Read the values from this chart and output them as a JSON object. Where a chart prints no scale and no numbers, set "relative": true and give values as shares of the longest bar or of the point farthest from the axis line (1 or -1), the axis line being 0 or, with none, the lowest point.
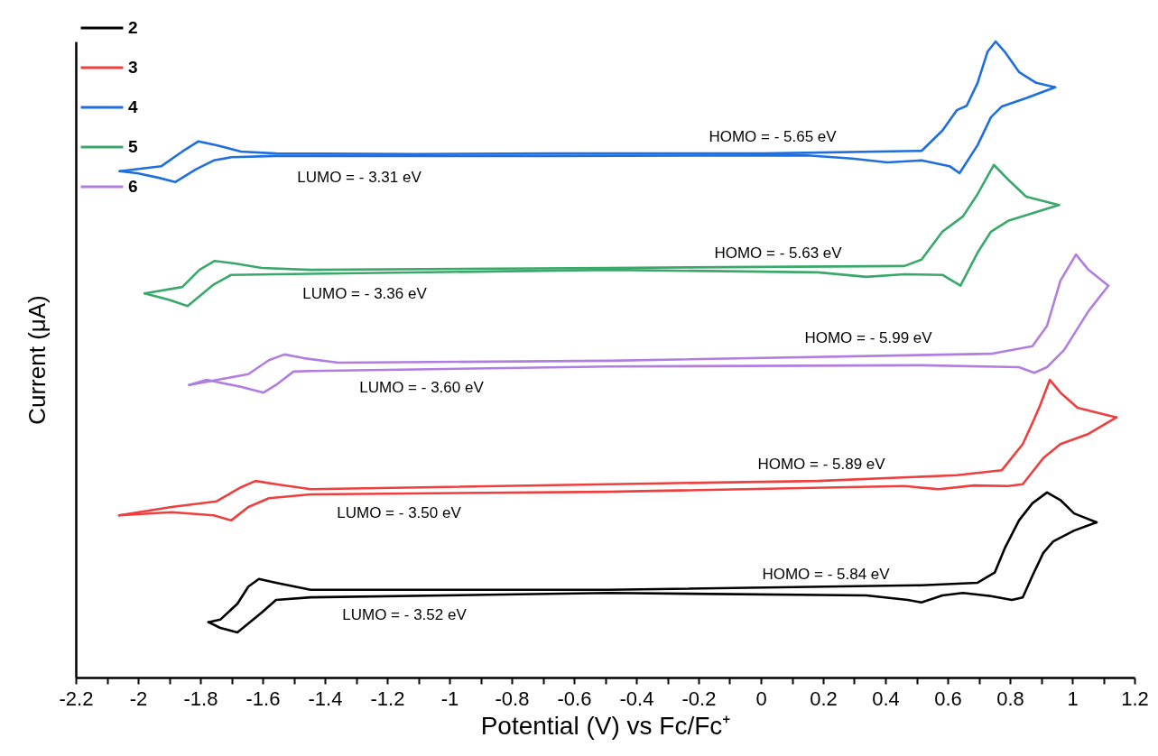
{
  "chart_data": {
    "type": "line",
    "relative": true,
    "xlabel": "Potential (V) vs Fc/Fc⁺",
    "ylabel": "Current (μA)",
    "legend": "top left",
    "grid": false,
    "xlim": [
      -2.2,
      1.2
    ],
    "xticks": [
      -2.2,
      {
        "value": -2.1,
        "label": null
      },
      -2,
      {
        "value": -1.9,
        "label": null
      },
      -1.8,
      {
        "value": -1.7,
        "label": null
      },
      -1.6,
      {
        "value": -1.5,
        "label": null
      },
      -1.4,
      {
        "value": -1.3,
        "label": null
      },
      -1.2,
      {
        "value": -1.1,
        "label": null
      },
      -1,
      {
        "value": -0.9,
        "label": null
      },
      -0.8,
      {
        "value": -0.7,
        "label": null
      },
      -0.6,
      {
        "value": -0.5,
        "label": null
      },
      -0.4,
      {
        "value": -0.3,
        "label": null
      },
      -0.2,
      {
        "value": -0.1,
        "label": null
      },
      0,
      {
        "value": 0.1,
        "label": null
      },
      0.2,
      {
        "value": 0.3,
        "label": null
      },
      0.4,
      {
        "value": 0.5,
        "label": null
      },
      0.6,
      {
        "value": 0.7,
        "label": null
      },
      0.8,
      {
        "value": 0.9,
        "label": null
      },
      1,
      {
        "value": 1.1,
        "label": null
      },
      1.2
    ],
    "series": [
      {
        "name": "2",
        "color": "#000000",
        "x": [
          -1.774,
          -1.736,
          -1.681,
          -1.646,
          -1.612,
          -1.557,
          -1.446,
          -0.487,
          0.516,
          0.696,
          0.751,
          0.783,
          0.829,
          0.872,
          0.919,
          0.962,
          1.006,
          1.078
        ],
        "values": [
          0.087,
          0.091,
          0.116,
          0.143,
          0.155,
          0.149,
          0.138,
          0.138,
          0.145,
          0.149,
          0.165,
          0.203,
          0.247,
          0.274,
          0.291,
          0.279,
          0.258,
          0.244
        ]
      },
      {
        "name": "3",
        "color": "#ee3e3e",
        "x": [
          -2.061,
          -1.893,
          -1.748,
          -1.67,
          -1.623,
          -1.557,
          -1.446,
          -0.487,
          0.183,
          0.629,
          0.774,
          0.841,
          0.872,
          0.896,
          0.928,
          0.962,
          1.017,
          1.142
        ],
        "values": [
          0.255,
          0.268,
          0.277,
          0.299,
          0.309,
          0.304,
          0.296,
          0.304,
          0.309,
          0.318,
          0.326,
          0.367,
          0.4,
          0.427,
          0.468,
          0.448,
          0.424,
          0.409
        ]
      },
      {
        "name": "4",
        "color": "#1f6ede",
        "x": [
          -2.059,
          -1.925,
          -1.858,
          -1.806,
          -1.748,
          -1.67,
          -1.557,
          -1.11,
          -0.655,
          0.006,
          0.516,
          0.583,
          0.629,
          0.661,
          0.696,
          0.728,
          0.754,
          0.783,
          0.829,
          0.884,
          0.945
        ],
        "values": [
          0.796,
          0.804,
          0.827,
          0.843,
          0.837,
          0.827,
          0.824,
          0.823,
          0.824,
          0.824,
          0.828,
          0.86,
          0.892,
          0.899,
          0.935,
          0.984,
          1,
          0.984,
          0.952,
          0.935,
          0.928
        ]
      },
      {
        "name": "5",
        "color": "#3aa86a",
        "x": [
          -1.979,
          -1.858,
          -1.803,
          -1.754,
          -1.69,
          -1.603,
          -1.446,
          -0.487,
          0.461,
          0.516,
          0.583,
          0.649,
          0.696,
          0.748,
          0.794,
          0.852,
          0.957
        ],
        "values": [
          0.604,
          0.614,
          0.641,
          0.655,
          0.651,
          0.644,
          0.641,
          0.644,
          0.647,
          0.657,
          0.701,
          0.725,
          0.76,
          0.806,
          0.783,
          0.756,
          0.743
        ]
      },
      {
        "name": "6",
        "color": "#b07ee0",
        "x": [
          -1.836,
          -1.646,
          -1.58,
          -1.53,
          -1.467,
          -1.357,
          -0.487,
          0.739,
          0.872,
          0.919,
          0.962,
          1.012,
          1.052,
          1.116
        ],
        "values": [
          0.46,
          0.477,
          0.499,
          0.508,
          0.502,
          0.495,
          0.498,
          0.509,
          0.521,
          0.553,
          0.624,
          0.665,
          0.641,
          0.616
        ]
      },
      {
        "color": "#000000",
        "x": [
          -1.774,
          -1.736,
          -1.681,
          -1.603,
          -1.557,
          -1.446,
          -0.487,
          0.339,
          0.472,
          0.516,
          0.583,
          0.649,
          0.739,
          0.806,
          0.841,
          0.872,
          0.907,
          0.939,
          1.006,
          1.078
        ],
        "values": [
          0.087,
          0.078,
          0.071,
          0.102,
          0.122,
          0.126,
          0.133,
          0.129,
          0.122,
          0.118,
          0.129,
          0.133,
          0.128,
          0.122,
          0.126,
          0.16,
          0.196,
          0.214,
          0.231,
          0.244
        ]
      },
      {
        "color": "#ee3e3e",
        "x": [
          -2.061,
          -1.893,
          -1.757,
          -1.701,
          -1.646,
          -1.58,
          -1.446,
          -0.487,
          0.461,
          0.571,
          0.684,
          0.794,
          0.841,
          0.907,
          0.962,
          1.052,
          1.142
        ],
        "values": [
          0.255,
          0.26,
          0.255,
          0.247,
          0.268,
          0.282,
          0.288,
          0.292,
          0.301,
          0.296,
          0.302,
          0.301,
          0.304,
          0.345,
          0.367,
          0.383,
          0.409
        ]
      },
      {
        "color": "#1f6ede",
        "x": [
          -2.059,
          -2.003,
          -1.936,
          -1.881,
          -1.814,
          -1.757,
          -1.701,
          -1.557,
          -0.655,
          0.148,
          0.293,
          0.406,
          0.516,
          0.606,
          0.638,
          0.696,
          0.739,
          0.774,
          0.852,
          0.945
        ],
        "values": [
          0.796,
          0.793,
          0.786,
          0.779,
          0.799,
          0.813,
          0.818,
          0.82,
          0.82,
          0.821,
          0.816,
          0.81,
          0.813,
          0.804,
          0.793,
          0.837,
          0.881,
          0.898,
          0.911,
          0.928
        ]
      },
      {
        "color": "#3aa86a",
        "x": [
          -1.979,
          -1.901,
          -1.841,
          -1.757,
          -1.701,
          -1.557,
          -0.487,
          0.183,
          0.339,
          0.461,
          0.583,
          0.641,
          0.696,
          0.739,
          0.794,
          0.957
        ],
        "values": [
          0.604,
          0.594,
          0.584,
          0.618,
          0.633,
          0.634,
          0.641,
          0.637,
          0.63,
          0.634,
          0.633,
          0.616,
          0.668,
          0.701,
          0.718,
          0.743
        ]
      },
      {
        "color": "#b07ee0",
        "x": [
          -1.836,
          -1.78,
          -1.67,
          -1.597,
          -1.557,
          -1.501,
          -1.446,
          -0.487,
          0.516,
          0.829,
          0.878,
          0.919,
          0.974,
          1.052,
          1.116
        ],
        "values": [
          0.46,
          0.468,
          0.457,
          0.448,
          0.46,
          0.481,
          0.482,
          0.489,
          0.491,
          0.488,
          0.479,
          0.488,
          0.515,
          0.576,
          0.616
        ]
      }
    ],
    "annotations": [
      "HOMO = - 5.65 eV",
      "LUMO = - 3.31 eV",
      "HOMO = - 5.63 eV",
      "LUMO = - 3.36 eV",
      "HOMO = - 5.99 eV",
      "LUMO = - 3.60 eV",
      "HOMO = - 5.89 eV",
      "LUMO = - 3.50 eV",
      "HOMO = - 5.84 eV",
      "LUMO = - 3.52 eV"
    ]
  }
}
